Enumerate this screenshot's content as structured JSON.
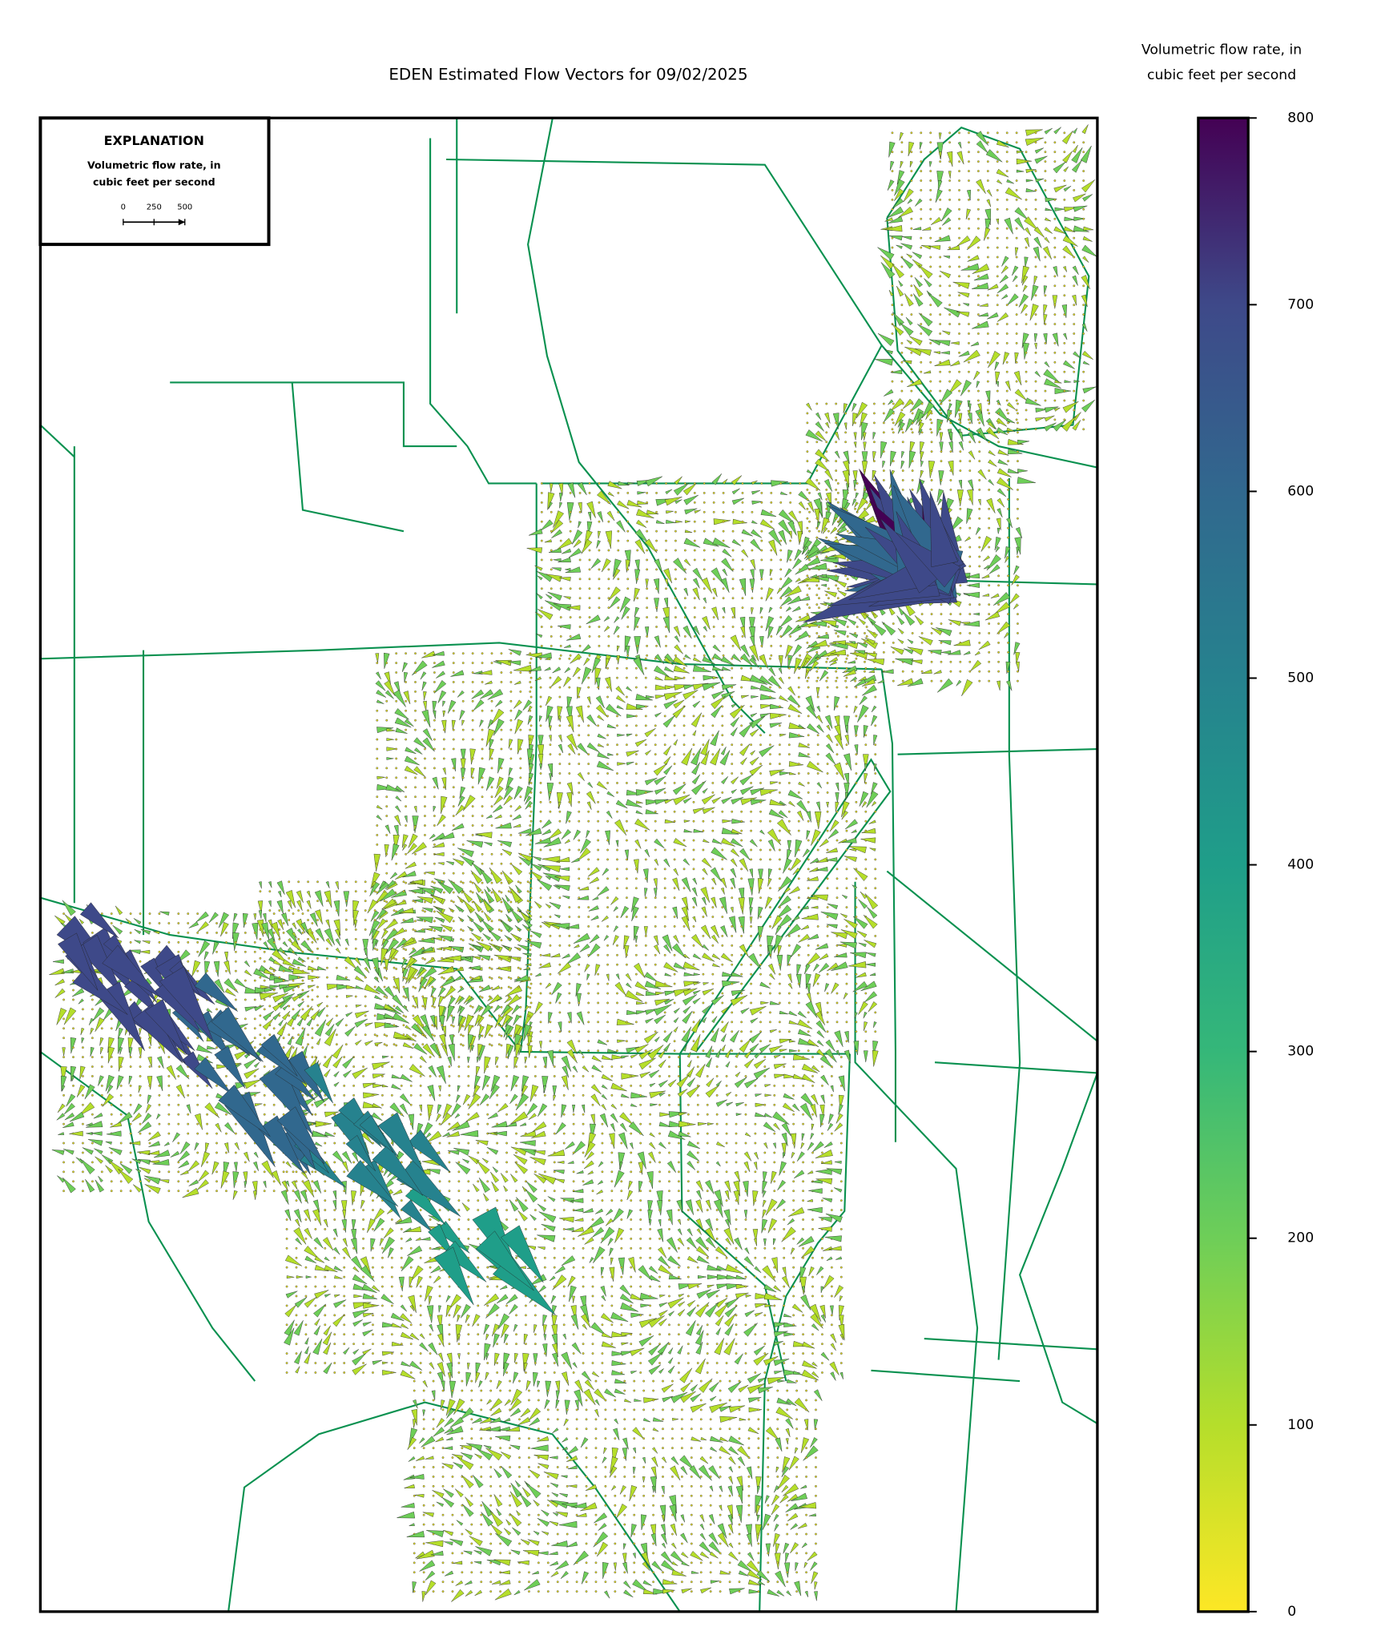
{
  "title": "EDEN Estimated Flow Vectors for 09/02/2025",
  "explanation": {
    "title": "EXPLANATION",
    "label_lines": [
      "Volumetric flow rate, in",
      "cubic feet per second"
    ],
    "scale_ticks": [
      0,
      250,
      500
    ]
  },
  "colorbar": {
    "label_lines": [
      "Volumetric flow rate, in",
      "cubic feet per second"
    ],
    "lim": [
      0,
      800
    ],
    "ticks": [
      0,
      100,
      200,
      300,
      400,
      500,
      600,
      700,
      800
    ]
  }
}
